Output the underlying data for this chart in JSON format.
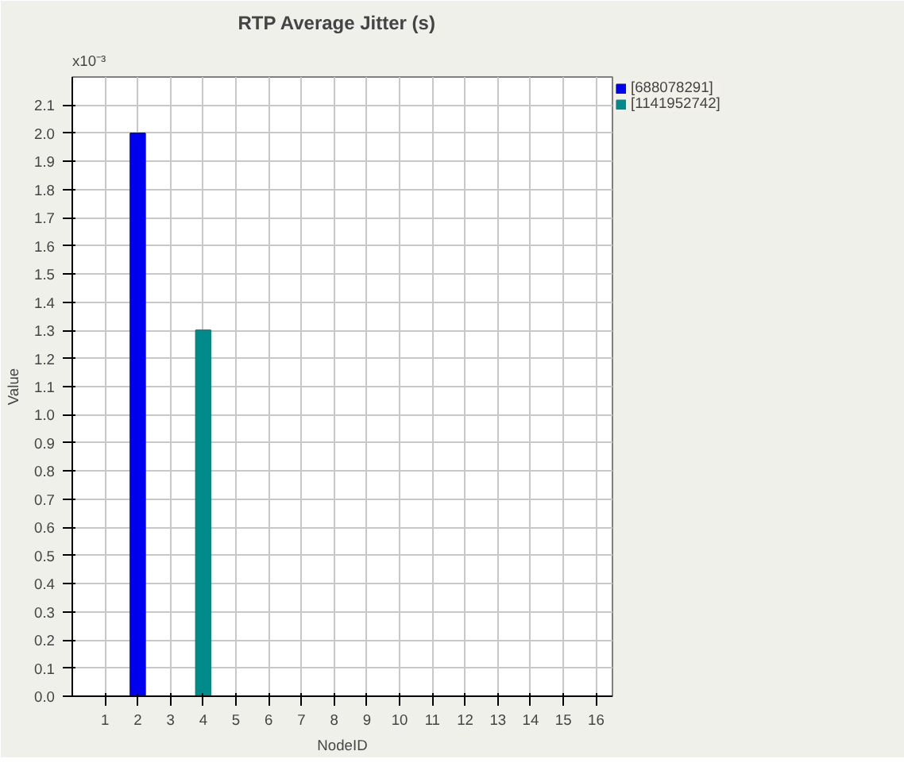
{
  "chart_data": {
    "type": "bar",
    "title": "RTP   Average Jitter (s)",
    "xlabel": "NodeID",
    "ylabel": "Value",
    "annotations": [
      "x10⁻³"
    ],
    "series": [
      {
        "name": "[688078291]",
        "color": "#0000f0",
        "x": [
          2
        ],
        "values": [
          2.0
        ]
      },
      {
        "name": "[1141952742]",
        "color": "#008b8b",
        "x": [
          4
        ],
        "values": [
          1.3
        ]
      }
    ],
    "xlim": [
      0,
      16.5
    ],
    "xticks": [
      1,
      2,
      3,
      4,
      5,
      6,
      7,
      8,
      9,
      10,
      11,
      12,
      13,
      14,
      15,
      16
    ],
    "ylim": [
      0,
      2.2
    ],
    "yticks": [
      {
        "value": 0,
        "label": "0.0"
      },
      {
        "value": 0.1,
        "label": "0.1"
      },
      {
        "value": 0.2,
        "label": "0.2"
      },
      {
        "value": 0.3,
        "label": "0.3"
      },
      {
        "value": 0.4,
        "label": "0.4"
      },
      {
        "value": 0.5,
        "label": "0.5"
      },
      {
        "value": 0.6,
        "label": "0.6"
      },
      {
        "value": 0.7,
        "label": "0.7"
      },
      {
        "value": 0.8,
        "label": "0.8"
      },
      {
        "value": 0.9,
        "label": "0.9"
      },
      {
        "value": 1.0,
        "label": "1.0"
      },
      {
        "value": 1.1,
        "label": "1.1"
      },
      {
        "value": 1.2,
        "label": "1.2"
      },
      {
        "value": 1.3,
        "label": "1.3"
      },
      {
        "value": 1.4,
        "label": "1.4"
      },
      {
        "value": 1.5,
        "label": "1.5"
      },
      {
        "value": 1.6,
        "label": "1.6"
      },
      {
        "value": 1.7,
        "label": "1.7"
      },
      {
        "value": 1.8,
        "label": "1.8"
      },
      {
        "value": 1.9,
        "label": "1.9"
      },
      {
        "value": 2.0,
        "label": "2.0"
      },
      {
        "value": 2.1,
        "label": "2.1"
      }
    ],
    "grid": true,
    "legend": "top right"
  }
}
